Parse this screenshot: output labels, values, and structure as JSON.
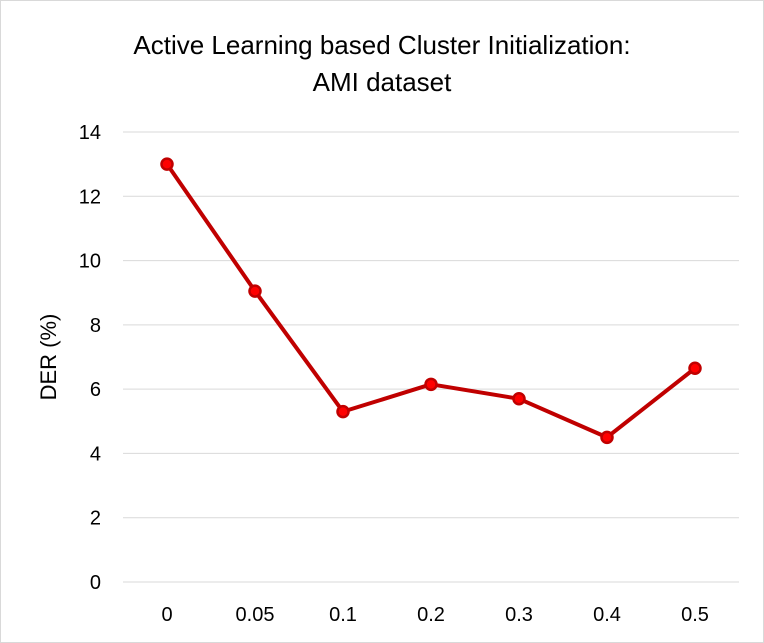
{
  "chart_data": {
    "type": "line",
    "title_lines": [
      "Active Learning based Cluster Initialization:",
      "AMI dataset"
    ],
    "xlabel": "",
    "ylabel": "DER (%)",
    "categories": [
      "0",
      "0.05",
      "0.1",
      "0.2",
      "0.3",
      "0.4",
      "0.5"
    ],
    "series": [
      {
        "values": [
          13.0,
          9.05,
          5.3,
          6.15,
          5.7,
          4.5,
          6.65
        ]
      }
    ],
    "ylim": [
      0,
      14
    ],
    "yticks": [
      0,
      2,
      4,
      6,
      8,
      10,
      12,
      14
    ],
    "grid": true,
    "line_color": "#c00000",
    "marker_color": "#ff0000"
  }
}
